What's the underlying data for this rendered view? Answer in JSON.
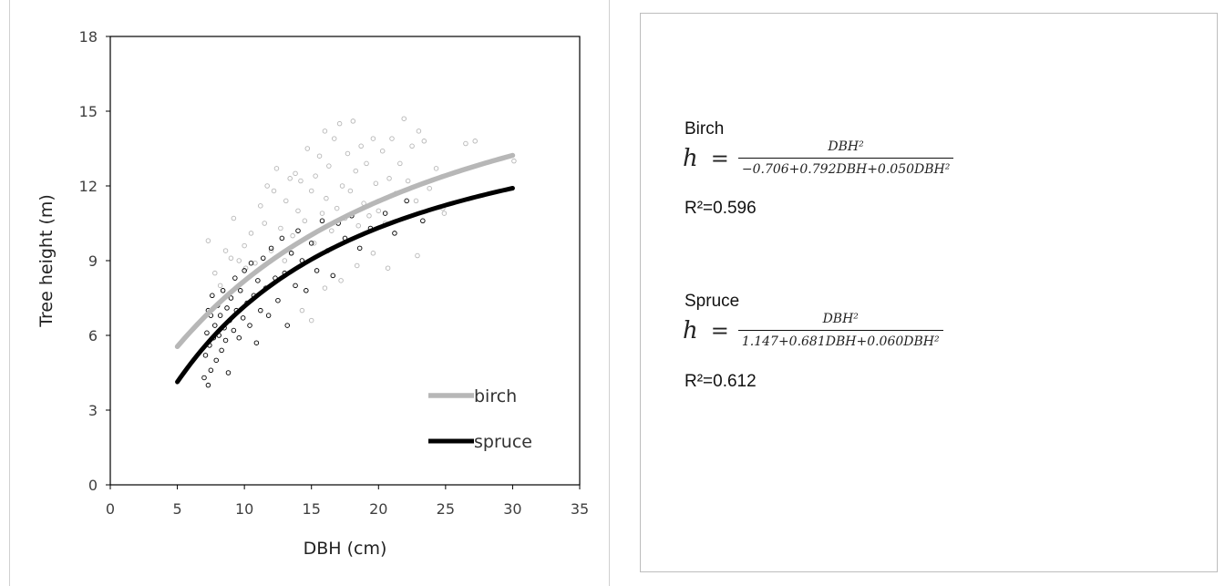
{
  "chart_data": {
    "type": "scatter",
    "xlabel": "DBH (cm)",
    "ylabel": "Tree height (m)",
    "xlim": [
      0,
      35
    ],
    "ylim": [
      0,
      18
    ],
    "x_ticks": [
      "0",
      "5",
      "10",
      "15",
      "20",
      "25",
      "30",
      "35"
    ],
    "y_ticks": [
      "0",
      "3",
      "6",
      "9",
      "12",
      "15",
      "18"
    ],
    "grid": false,
    "legend_placement": "bottom-right",
    "series": [
      {
        "name": "birch",
        "kind": "scatter+fit",
        "color": "#b7b7b7",
        "model": {
          "a": -0.706,
          "b": 0.792,
          "c": 0.05
        },
        "fit_range": [
          5,
          30
        ],
        "points": [
          [
            7.3,
            9.8
          ],
          [
            7.8,
            8.5
          ],
          [
            8.2,
            8.0
          ],
          [
            8.6,
            9.4
          ],
          [
            9.0,
            9.1
          ],
          [
            9.2,
            10.7
          ],
          [
            9.6,
            9.0
          ],
          [
            10.0,
            9.6
          ],
          [
            10.1,
            8.7
          ],
          [
            10.5,
            10.1
          ],
          [
            10.8,
            8.9
          ],
          [
            11.2,
            11.2
          ],
          [
            11.5,
            10.5
          ],
          [
            11.7,
            12.0
          ],
          [
            12.0,
            9.4
          ],
          [
            12.2,
            11.8
          ],
          [
            12.4,
            12.7
          ],
          [
            12.7,
            10.3
          ],
          [
            13.0,
            9.0
          ],
          [
            13.1,
            11.4
          ],
          [
            13.4,
            12.3
          ],
          [
            13.6,
            10.0
          ],
          [
            13.8,
            12.5
          ],
          [
            14.0,
            11.0
          ],
          [
            14.2,
            12.2
          ],
          [
            14.5,
            10.6
          ],
          [
            14.7,
            13.5
          ],
          [
            15.0,
            11.8
          ],
          [
            15.2,
            9.7
          ],
          [
            15.3,
            12.4
          ],
          [
            15.6,
            13.2
          ],
          [
            15.8,
            10.9
          ],
          [
            16.0,
            14.2
          ],
          [
            16.1,
            11.5
          ],
          [
            16.3,
            12.8
          ],
          [
            16.5,
            10.2
          ],
          [
            16.7,
            13.9
          ],
          [
            16.9,
            11.1
          ],
          [
            17.1,
            14.5
          ],
          [
            17.3,
            12.0
          ],
          [
            17.5,
            10.7
          ],
          [
            17.7,
            13.3
          ],
          [
            17.9,
            11.8
          ],
          [
            18.1,
            14.6
          ],
          [
            18.3,
            12.6
          ],
          [
            18.5,
            10.4
          ],
          [
            18.7,
            13.6
          ],
          [
            18.9,
            11.3
          ],
          [
            19.1,
            12.9
          ],
          [
            19.3,
            10.8
          ],
          [
            19.6,
            13.9
          ],
          [
            19.8,
            12.1
          ],
          [
            20.0,
            11.0
          ],
          [
            20.3,
            13.4
          ],
          [
            20.5,
            10.5
          ],
          [
            20.8,
            12.3
          ],
          [
            21.0,
            13.9
          ],
          [
            21.3,
            11.7
          ],
          [
            21.6,
            12.9
          ],
          [
            21.9,
            14.7
          ],
          [
            22.2,
            12.2
          ],
          [
            22.5,
            13.6
          ],
          [
            22.8,
            11.4
          ],
          [
            23.0,
            14.2
          ],
          [
            23.4,
            13.8
          ],
          [
            23.8,
            11.9
          ],
          [
            24.3,
            12.7
          ],
          [
            24.8,
            11.1
          ],
          [
            26.5,
            13.7
          ],
          [
            27.2,
            13.8
          ],
          [
            30.1,
            13.0
          ],
          [
            14.3,
            7.0
          ],
          [
            15.0,
            6.6
          ],
          [
            16.0,
            7.9
          ],
          [
            17.2,
            8.2
          ],
          [
            18.4,
            8.8
          ],
          [
            19.6,
            9.3
          ],
          [
            20.7,
            8.7
          ],
          [
            22.9,
            9.2
          ],
          [
            24.9,
            10.9
          ]
        ]
      },
      {
        "name": "spruce",
        "kind": "scatter+fit",
        "color": "#000000",
        "model": {
          "a": 1.147,
          "b": 0.681,
          "c": 0.06
        },
        "fit_range": [
          5,
          30
        ],
        "points": [
          [
            7.0,
            4.3
          ],
          [
            7.1,
            5.2
          ],
          [
            7.2,
            6.1
          ],
          [
            7.3,
            4.0
          ],
          [
            7.3,
            7.0
          ],
          [
            7.4,
            5.6
          ],
          [
            7.5,
            6.8
          ],
          [
            7.5,
            4.6
          ],
          [
            7.6,
            7.6
          ],
          [
            7.7,
            5.9
          ],
          [
            7.8,
            6.4
          ],
          [
            7.9,
            5.0
          ],
          [
            8.0,
            7.2
          ],
          [
            8.1,
            6.0
          ],
          [
            8.2,
            6.8
          ],
          [
            8.3,
            5.4
          ],
          [
            8.4,
            7.8
          ],
          [
            8.5,
            6.3
          ],
          [
            8.6,
            5.8
          ],
          [
            8.7,
            7.1
          ],
          [
            8.8,
            4.5
          ],
          [
            8.9,
            6.6
          ],
          [
            9.0,
            7.5
          ],
          [
            9.2,
            6.2
          ],
          [
            9.3,
            8.3
          ],
          [
            9.4,
            7.0
          ],
          [
            9.6,
            5.9
          ],
          [
            9.7,
            7.8
          ],
          [
            9.9,
            6.7
          ],
          [
            10.0,
            8.6
          ],
          [
            10.2,
            7.3
          ],
          [
            10.4,
            6.4
          ],
          [
            10.5,
            8.9
          ],
          [
            10.7,
            7.6
          ],
          [
            10.9,
            5.7
          ],
          [
            11.0,
            8.2
          ],
          [
            11.2,
            7.0
          ],
          [
            11.4,
            9.1
          ],
          [
            11.6,
            7.9
          ],
          [
            11.8,
            6.8
          ],
          [
            12.0,
            9.5
          ],
          [
            12.3,
            8.3
          ],
          [
            12.5,
            7.4
          ],
          [
            12.8,
            9.9
          ],
          [
            13.0,
            8.5
          ],
          [
            13.2,
            6.4
          ],
          [
            13.5,
            9.3
          ],
          [
            13.8,
            8.0
          ],
          [
            14.0,
            10.2
          ],
          [
            14.3,
            9.0
          ],
          [
            14.6,
            7.8
          ],
          [
            15.0,
            9.7
          ],
          [
            15.4,
            8.6
          ],
          [
            15.8,
            10.6
          ],
          [
            16.2,
            9.4
          ],
          [
            16.6,
            8.4
          ],
          [
            17.0,
            10.5
          ],
          [
            17.5,
            9.9
          ],
          [
            18.0,
            10.8
          ],
          [
            18.6,
            9.5
          ],
          [
            19.4,
            10.3
          ],
          [
            20.5,
            10.9
          ],
          [
            21.2,
            10.1
          ],
          [
            22.1,
            11.4
          ],
          [
            23.3,
            10.6
          ]
        ]
      }
    ]
  },
  "equations": {
    "birch": {
      "species": "Birch",
      "lhs": "h",
      "equals": "=",
      "numerator": "DBH²",
      "denominator": "−0.706+0.792DBH+0.050DBH²",
      "r2": "R²=0.596"
    },
    "spruce": {
      "species": "Spruce",
      "lhs": "h",
      "equals": "=",
      "numerator": "DBH²",
      "denominator": "1.147+0.681DBH+0.060DBH²",
      "r2": "R²=0.612"
    }
  }
}
